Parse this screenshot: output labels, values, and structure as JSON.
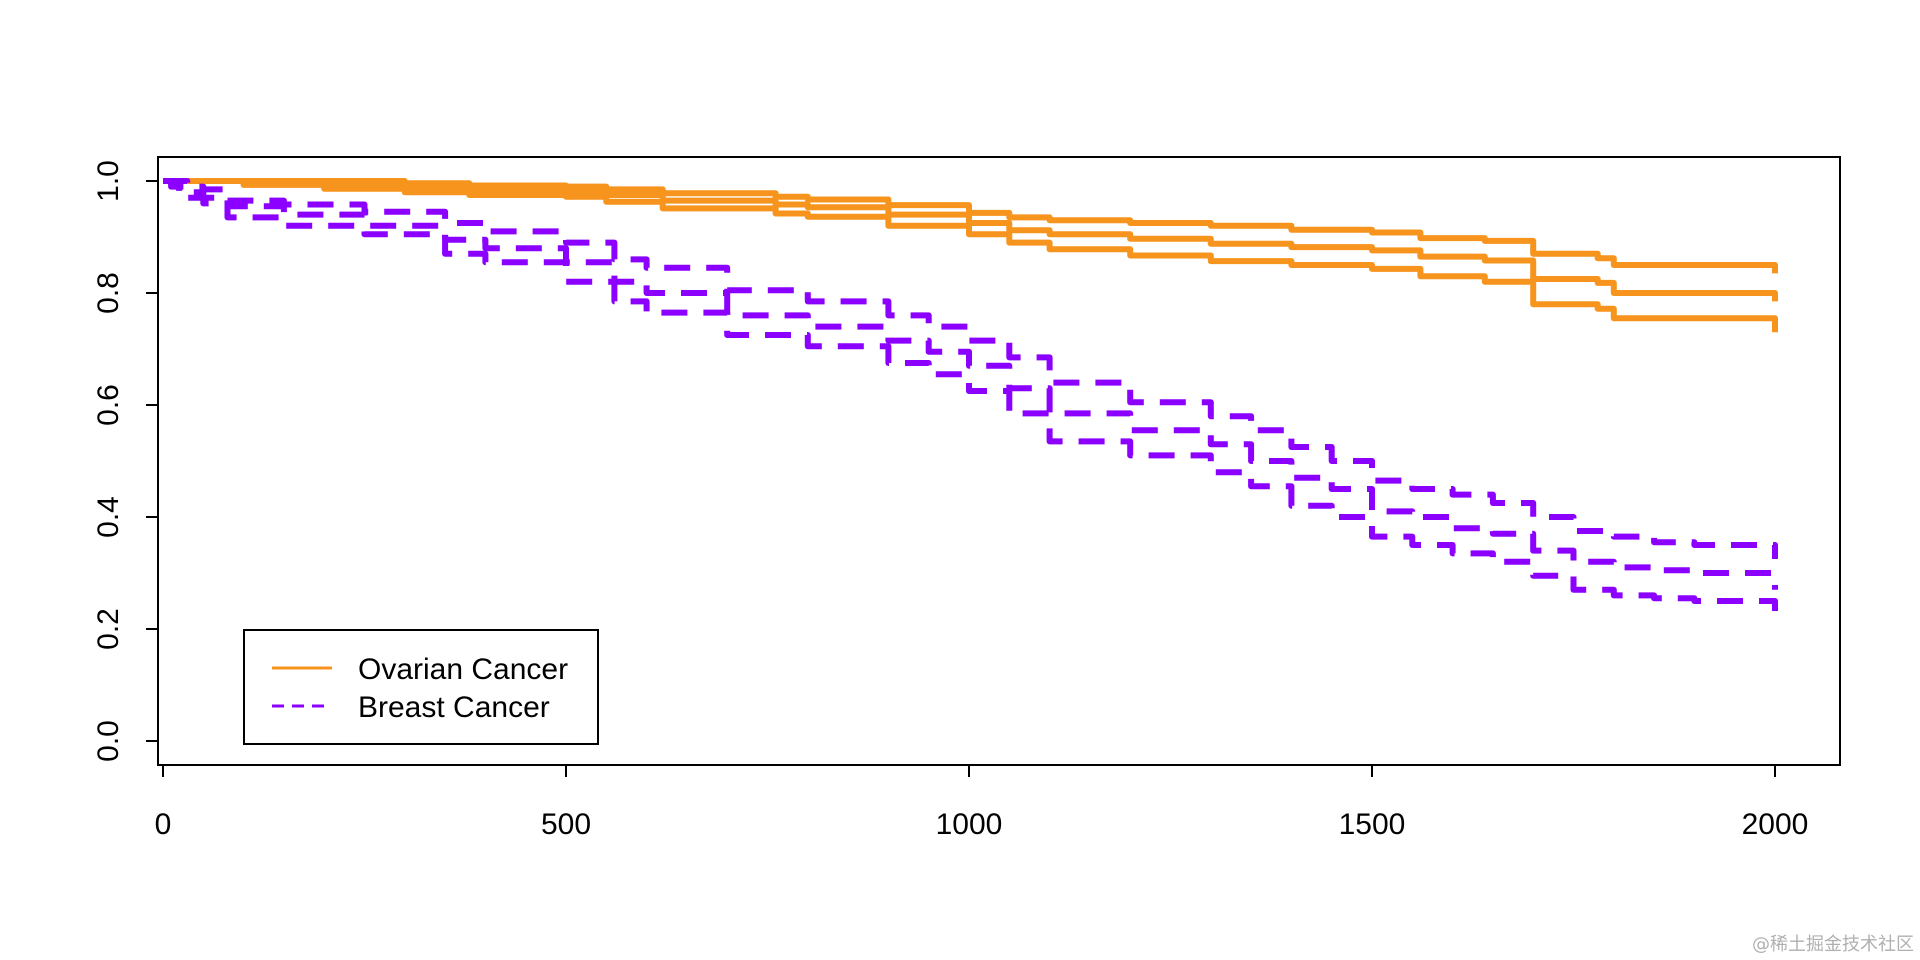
{
  "chart_data": {
    "type": "line",
    "title": "",
    "xlabel": "",
    "ylabel": "",
    "xlim": [
      0,
      2000
    ],
    "ylim": [
      0,
      1
    ],
    "x_ticks": [
      0,
      500,
      1000,
      1500,
      2000
    ],
    "y_ticks": [
      0.0,
      0.2,
      0.4,
      0.6,
      0.8,
      1.0
    ],
    "x_tick_labels": [
      "0",
      "500",
      "1000",
      "1500",
      "2000"
    ],
    "y_tick_labels": [
      "0.0",
      "0.2",
      "0.4",
      "0.6",
      "0.8",
      "1.0"
    ],
    "grid": false,
    "legend_position": "bottom-left",
    "series": [
      {
        "name": "Ovarian Cancer",
        "color": "#F7941D",
        "line_style": "solid",
        "estimate": {
          "x": [
            0,
            100,
            200,
            300,
            380,
            500,
            550,
            620,
            760,
            800,
            900,
            1000,
            1050,
            1100,
            1200,
            1300,
            1400,
            1500,
            1560,
            1640,
            1700,
            1780,
            1800,
            2000
          ],
          "y": [
            1.0,
            0.997,
            0.993,
            0.988,
            0.984,
            0.982,
            0.975,
            0.965,
            0.958,
            0.953,
            0.94,
            0.925,
            0.912,
            0.905,
            0.897,
            0.888,
            0.882,
            0.876,
            0.865,
            0.858,
            0.825,
            0.818,
            0.8,
            0.785
          ]
        },
        "upper": {
          "x": [
            0,
            100,
            200,
            300,
            380,
            500,
            550,
            620,
            760,
            800,
            900,
            1000,
            1050,
            1100,
            1200,
            1300,
            1400,
            1500,
            1560,
            1640,
            1700,
            1780,
            1800,
            2000
          ],
          "y": [
            1.0,
            1.0,
            1.0,
            0.996,
            0.992,
            0.99,
            0.985,
            0.978,
            0.972,
            0.967,
            0.957,
            0.943,
            0.935,
            0.93,
            0.925,
            0.92,
            0.913,
            0.908,
            0.898,
            0.893,
            0.87,
            0.862,
            0.85,
            0.835
          ]
        },
        "lower": {
          "x": [
            0,
            100,
            200,
            300,
            380,
            500,
            550,
            620,
            760,
            800,
            900,
            1000,
            1050,
            1100,
            1200,
            1300,
            1400,
            1500,
            1560,
            1640,
            1700,
            1780,
            1800,
            2000
          ],
          "y": [
            1.0,
            0.993,
            0.986,
            0.98,
            0.975,
            0.972,
            0.963,
            0.951,
            0.942,
            0.936,
            0.92,
            0.905,
            0.89,
            0.878,
            0.867,
            0.857,
            0.85,
            0.843,
            0.83,
            0.82,
            0.78,
            0.772,
            0.755,
            0.73
          ]
        }
      },
      {
        "name": "Breast Cancer",
        "color": "#8B00FF",
        "line_style": "dashed",
        "estimate": {
          "x": [
            0,
            10,
            20,
            30,
            50,
            80,
            150,
            250,
            350,
            400,
            500,
            560,
            600,
            700,
            800,
            900,
            950,
            1000,
            1050,
            1100,
            1200,
            1300,
            1350,
            1400,
            1450,
            1500,
            1550,
            1600,
            1650,
            1700,
            1750,
            1800,
            1850,
            1900,
            2000
          ],
          "y": [
            1.0,
            0.995,
            0.99,
            0.98,
            0.97,
            0.955,
            0.94,
            0.92,
            0.895,
            0.88,
            0.855,
            0.82,
            0.8,
            0.76,
            0.74,
            0.715,
            0.695,
            0.67,
            0.63,
            0.585,
            0.555,
            0.53,
            0.5,
            0.47,
            0.45,
            0.41,
            0.4,
            0.38,
            0.37,
            0.34,
            0.32,
            0.31,
            0.305,
            0.3,
            0.27
          ]
        },
        "upper": {
          "x": [
            0,
            10,
            20,
            30,
            50,
            80,
            150,
            250,
            350,
            400,
            500,
            560,
            600,
            700,
            800,
            900,
            950,
            1000,
            1050,
            1100,
            1200,
            1300,
            1350,
            1400,
            1450,
            1500,
            1550,
            1600,
            1650,
            1700,
            1750,
            1800,
            1850,
            1900,
            2000
          ],
          "y": [
            1.0,
            1.0,
            1.0,
            0.99,
            0.985,
            0.965,
            0.958,
            0.945,
            0.925,
            0.91,
            0.89,
            0.86,
            0.845,
            0.805,
            0.785,
            0.76,
            0.74,
            0.715,
            0.685,
            0.64,
            0.605,
            0.58,
            0.555,
            0.525,
            0.5,
            0.465,
            0.45,
            0.44,
            0.425,
            0.4,
            0.375,
            0.365,
            0.355,
            0.35,
            0.325
          ]
        },
        "lower": {
          "x": [
            0,
            10,
            20,
            30,
            50,
            80,
            150,
            250,
            350,
            400,
            500,
            560,
            600,
            700,
            800,
            900,
            950,
            1000,
            1050,
            1100,
            1200,
            1300,
            1350,
            1400,
            1450,
            1500,
            1550,
            1600,
            1650,
            1700,
            1750,
            1800,
            1850,
            1900,
            2000
          ],
          "y": [
            1.0,
            0.99,
            0.98,
            0.97,
            0.96,
            0.935,
            0.92,
            0.905,
            0.87,
            0.855,
            0.82,
            0.785,
            0.765,
            0.725,
            0.705,
            0.675,
            0.655,
            0.625,
            0.585,
            0.535,
            0.51,
            0.48,
            0.455,
            0.42,
            0.4,
            0.365,
            0.35,
            0.335,
            0.32,
            0.295,
            0.27,
            0.26,
            0.255,
            0.25,
            0.22
          ]
        }
      }
    ],
    "legend": [
      {
        "label": "Ovarian Cancer",
        "color": "#F7941D",
        "line_style": "solid"
      },
      {
        "label": "Breast Cancer",
        "color": "#8B00FF",
        "line_style": "dashed"
      }
    ]
  },
  "watermark": "@稀土掘金技术社区"
}
